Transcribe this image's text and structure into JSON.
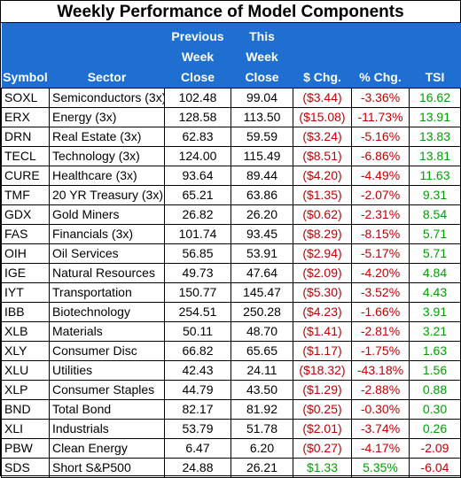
{
  "title": "Weekly Performance of Model Components",
  "headers": {
    "symbol": "Symbol",
    "sector": "Sector",
    "prev": [
      "Previous",
      "Week",
      "Close"
    ],
    "this": [
      "This",
      "Week",
      "Close"
    ],
    "chg": "$ Chg.",
    "pct": "% Chg.",
    "tsi": "TSI"
  },
  "colors": {
    "header_bg": "#1f6fd1",
    "negative": "#c00000",
    "positive": "#00a000"
  },
  "rows": [
    {
      "symbol": "SOXL",
      "sector": "Semiconductors (3x)",
      "prev": "102.48",
      "this": "99.04",
      "chg": "($3.44)",
      "pct": "-3.36%",
      "tsi": "16.62",
      "chg_sign": "neg",
      "pct_sign": "neg",
      "tsi_sign": "pos"
    },
    {
      "symbol": "ERX",
      "sector": "Energy (3x)",
      "prev": "128.58",
      "this": "113.50",
      "chg": "($15.08)",
      "pct": "-11.73%",
      "tsi": "13.91",
      "chg_sign": "neg",
      "pct_sign": "neg",
      "tsi_sign": "pos"
    },
    {
      "symbol": "DRN",
      "sector": "Real Estate (3x)",
      "prev": "62.83",
      "this": "59.59",
      "chg": "($3.24)",
      "pct": "-5.16%",
      "tsi": "13.83",
      "chg_sign": "neg",
      "pct_sign": "neg",
      "tsi_sign": "pos"
    },
    {
      "symbol": "TECL",
      "sector": "Technology (3x)",
      "prev": "124.00",
      "this": "115.49",
      "chg": "($8.51)",
      "pct": "-6.86%",
      "tsi": "13.81",
      "chg_sign": "neg",
      "pct_sign": "neg",
      "tsi_sign": "pos"
    },
    {
      "symbol": "CURE",
      "sector": "Healthcare (3x)",
      "prev": "93.64",
      "this": "89.44",
      "chg": "($4.20)",
      "pct": "-4.49%",
      "tsi": "11.63",
      "chg_sign": "neg",
      "pct_sign": "neg",
      "tsi_sign": "pos"
    },
    {
      "symbol": "TMF",
      "sector": "20 YR Treasury (3x)",
      "prev": "65.21",
      "this": "63.86",
      "chg": "($1.35)",
      "pct": "-2.07%",
      "tsi": "9.31",
      "chg_sign": "neg",
      "pct_sign": "neg",
      "tsi_sign": "pos"
    },
    {
      "symbol": "GDX",
      "sector": "Gold Miners",
      "prev": "26.82",
      "this": "26.20",
      "chg": "($0.62)",
      "pct": "-2.31%",
      "tsi": "8.54",
      "chg_sign": "neg",
      "pct_sign": "neg",
      "tsi_sign": "pos"
    },
    {
      "symbol": "FAS",
      "sector": "Financials (3x)",
      "prev": "101.74",
      "this": "93.45",
      "chg": "($8.29)",
      "pct": "-8.15%",
      "tsi": "5.71",
      "chg_sign": "neg",
      "pct_sign": "neg",
      "tsi_sign": "pos"
    },
    {
      "symbol": "OIH",
      "sector": "Oil Services",
      "prev": "56.85",
      "this": "53.91",
      "chg": "($2.94)",
      "pct": "-5.17%",
      "tsi": "5.71",
      "chg_sign": "neg",
      "pct_sign": "neg",
      "tsi_sign": "pos"
    },
    {
      "symbol": "IGE",
      "sector": "Natural Resources",
      "prev": "49.73",
      "this": "47.64",
      "chg": "($2.09)",
      "pct": "-4.20%",
      "tsi": "4.84",
      "chg_sign": "neg",
      "pct_sign": "neg",
      "tsi_sign": "pos"
    },
    {
      "symbol": "IYT",
      "sector": "Transportation",
      "prev": "150.77",
      "this": "145.47",
      "chg": "($5.30)",
      "pct": "-3.52%",
      "tsi": "4.43",
      "chg_sign": "neg",
      "pct_sign": "neg",
      "tsi_sign": "pos"
    },
    {
      "symbol": "IBB",
      "sector": "Biotechnology",
      "prev": "254.51",
      "this": "250.28",
      "chg": "($4.23)",
      "pct": "-1.66%",
      "tsi": "3.91",
      "chg_sign": "neg",
      "pct_sign": "neg",
      "tsi_sign": "pos"
    },
    {
      "symbol": "XLB",
      "sector": "Materials",
      "prev": "50.11",
      "this": "48.70",
      "chg": "($1.41)",
      "pct": "-2.81%",
      "tsi": "3.21",
      "chg_sign": "neg",
      "pct_sign": "neg",
      "tsi_sign": "pos"
    },
    {
      "symbol": "XLY",
      "sector": "Consumer Disc",
      "prev": "66.82",
      "this": "65.65",
      "chg": "($1.17)",
      "pct": "-1.75%",
      "tsi": "1.63",
      "chg_sign": "neg",
      "pct_sign": "neg",
      "tsi_sign": "pos"
    },
    {
      "symbol": "XLU",
      "sector": "Utilities",
      "prev": "42.43",
      "this": "24.11",
      "chg": "($18.32)",
      "pct": "-43.18%",
      "tsi": "1.56",
      "chg_sign": "neg",
      "pct_sign": "neg",
      "tsi_sign": "pos"
    },
    {
      "symbol": "XLP",
      "sector": "Consumer Staples",
      "prev": "44.79",
      "this": "43.50",
      "chg": "($1.29)",
      "pct": "-2.88%",
      "tsi": "0.88",
      "chg_sign": "neg",
      "pct_sign": "neg",
      "tsi_sign": "pos"
    },
    {
      "symbol": "BND",
      "sector": "Total Bond",
      "prev": "82.17",
      "this": "81.92",
      "chg": "($0.25)",
      "pct": "-0.30%",
      "tsi": "0.30",
      "chg_sign": "neg",
      "pct_sign": "neg",
      "tsi_sign": "pos"
    },
    {
      "symbol": "XLI",
      "sector": "Industrials",
      "prev": "53.79",
      "this": "51.78",
      "chg": "($2.01)",
      "pct": "-3.74%",
      "tsi": "0.26",
      "chg_sign": "neg",
      "pct_sign": "neg",
      "tsi_sign": "pos"
    },
    {
      "symbol": "PBW",
      "sector": "Clean Energy",
      "prev": "6.47",
      "this": "6.20",
      "chg": "($0.27)",
      "pct": "-4.17%",
      "tsi": "-2.09",
      "chg_sign": "neg",
      "pct_sign": "neg",
      "tsi_sign": "neg"
    },
    {
      "symbol": "SDS",
      "sector": "Short S&P500",
      "prev": "24.88",
      "this": "26.21",
      "chg": "$1.33",
      "pct": "5.35%",
      "tsi": "-6.04",
      "chg_sign": "pos",
      "pct_sign": "pos",
      "tsi_sign": "neg"
    }
  ]
}
